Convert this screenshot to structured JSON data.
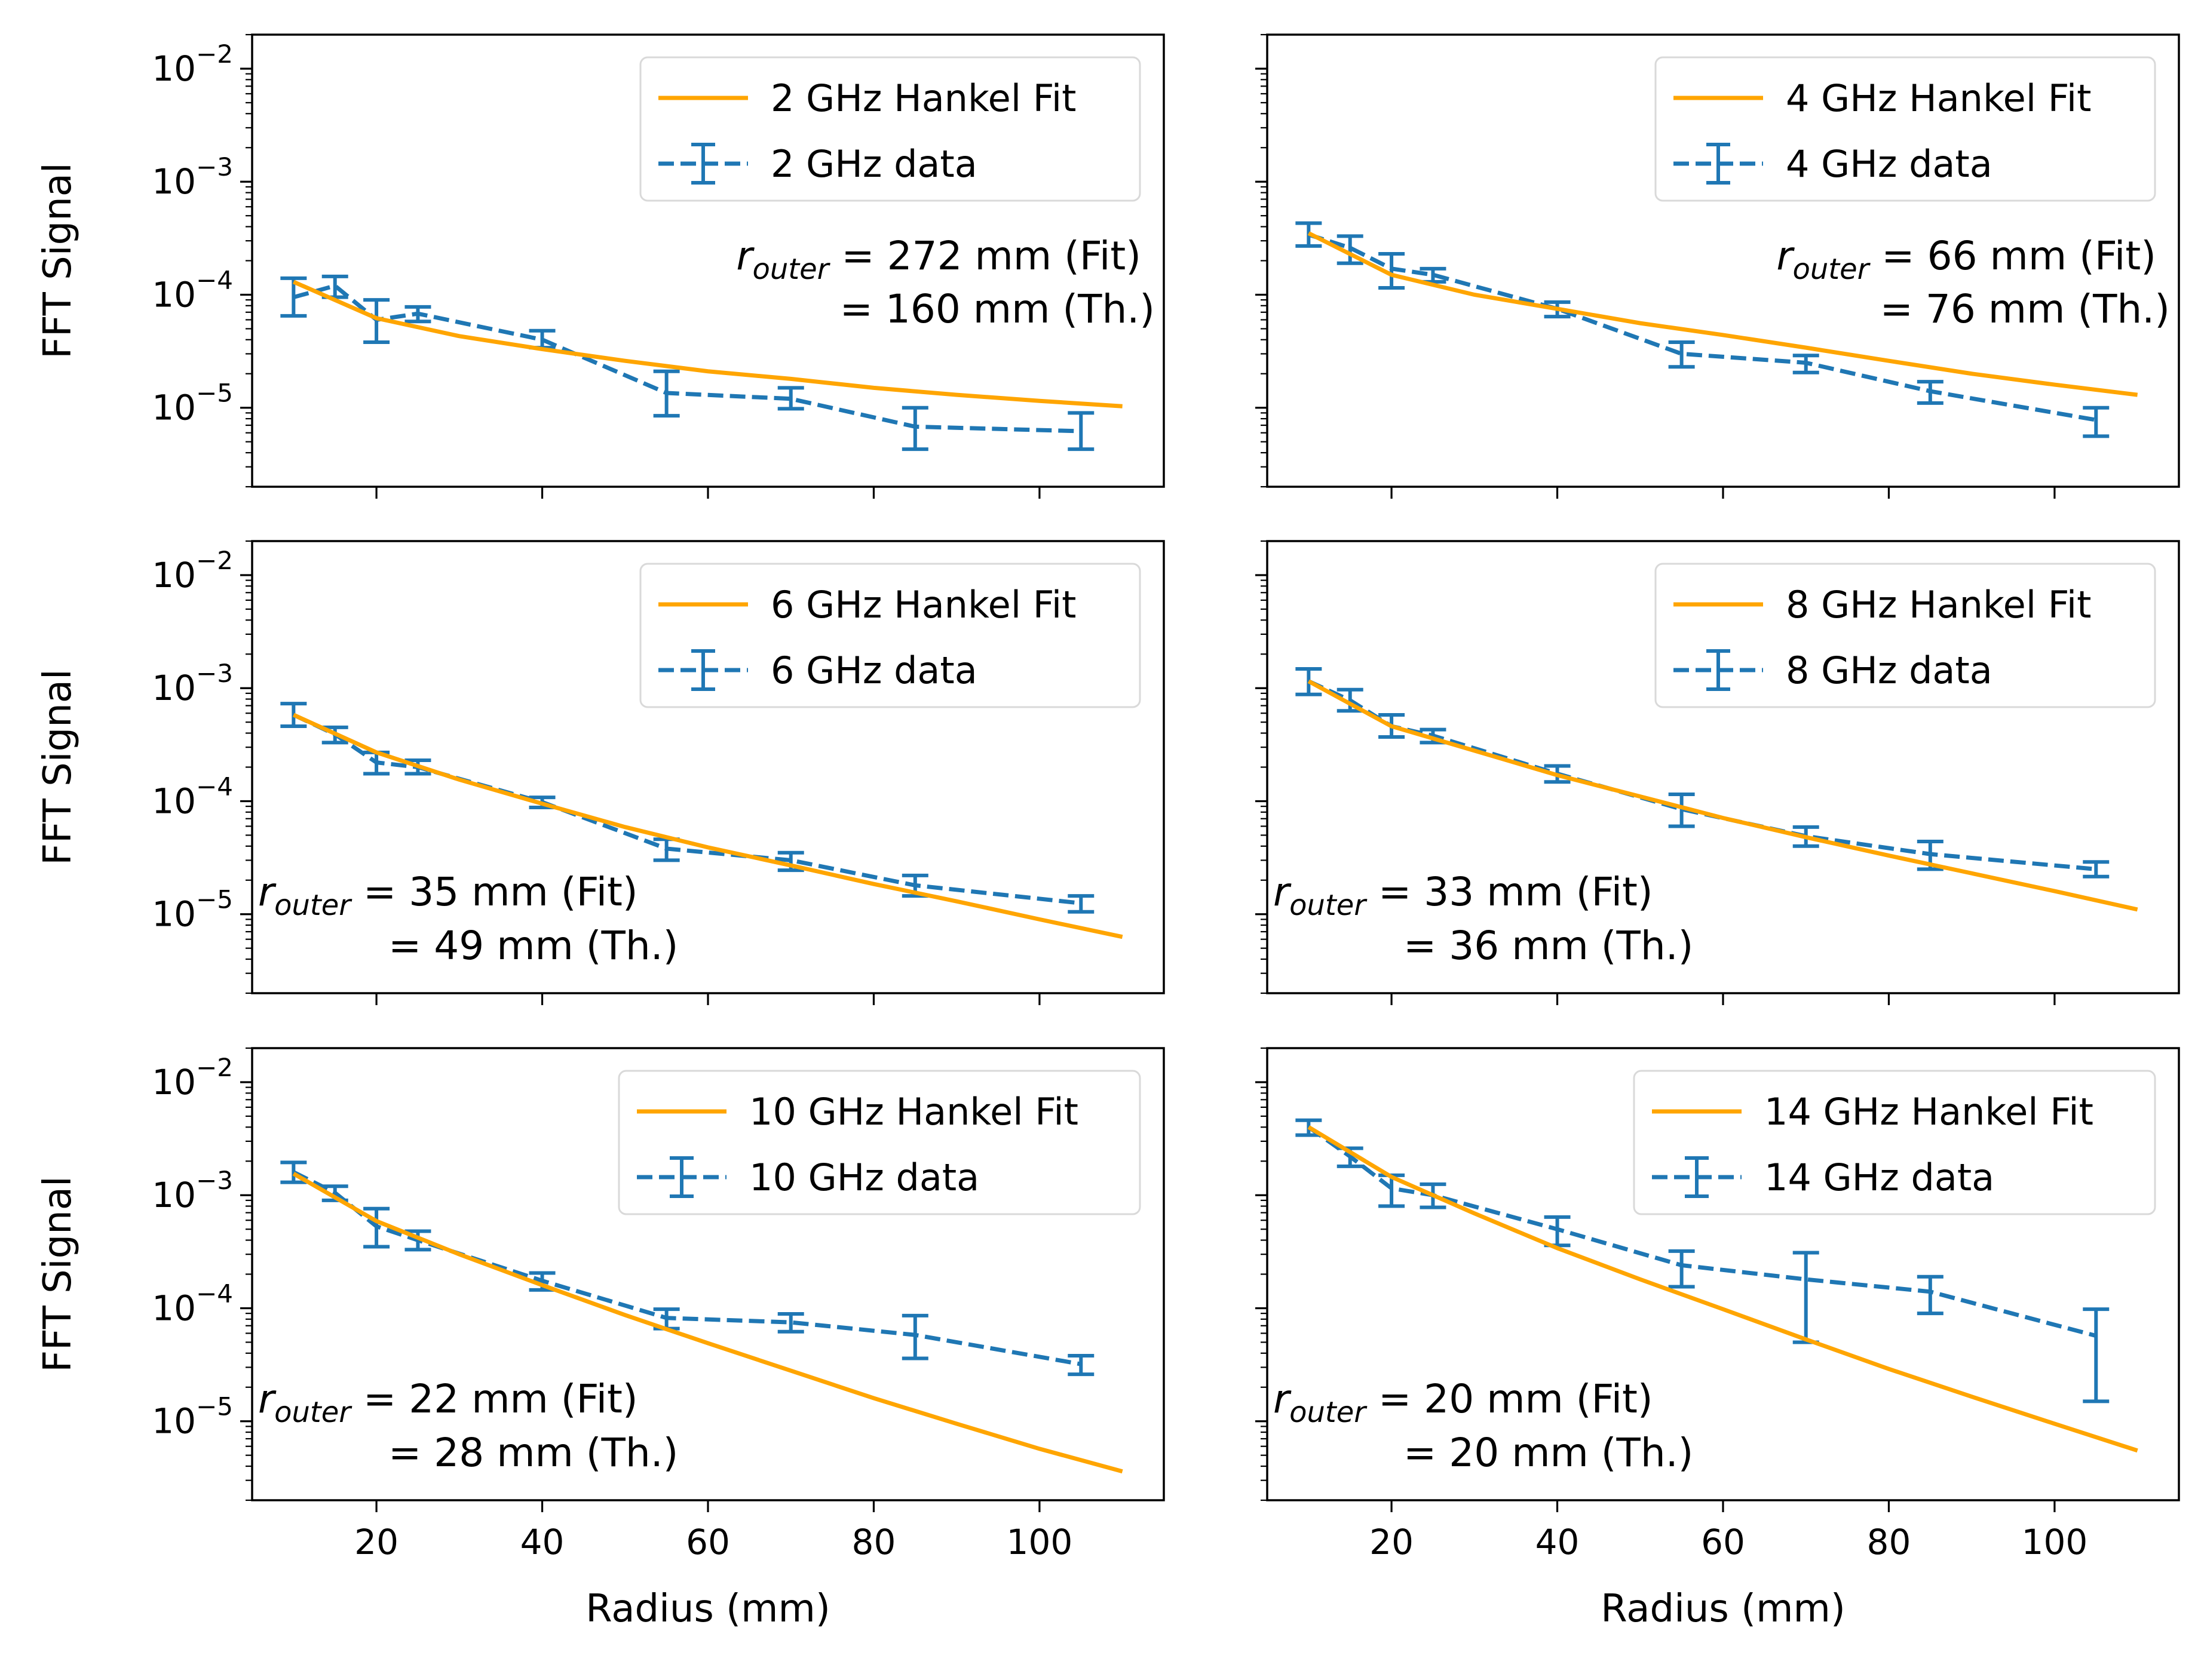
{
  "figure": {
    "ylabel": "FFT Signal",
    "xlabel": "Radius (mm)"
  },
  "chart_data": [
    {
      "type": "line",
      "panel": "top-left",
      "xlim": [
        5,
        115
      ],
      "ylim": [
        2e-06,
        0.02
      ],
      "yscale": "log",
      "xticks": [
        20,
        40,
        60,
        80,
        100
      ],
      "yticks": [
        1e-05,
        0.0001,
        0.001,
        0.01
      ],
      "show_xticklabels": false,
      "show_yticklabels": true,
      "ylabel": "FFT Signal",
      "xlabel": "",
      "legend_position": "upper-right",
      "annotation_position": "right",
      "annotation": {
        "symbol": "r",
        "subscript": "outer",
        "line1": " = 272 mm (Fit)",
        "line2": "= 160 mm (Th.)"
      },
      "series": [
        {
          "name": "2 GHz Hankel Fit",
          "style": "solid",
          "color": "#ffa500",
          "x": [
            10,
            20,
            30,
            40,
            50,
            60,
            70,
            80,
            90,
            100,
            110
          ],
          "y": [
            0.00013,
            6.2e-05,
            4.3e-05,
            3.3e-05,
            2.6e-05,
            2.1e-05,
            1.8e-05,
            1.5e-05,
            1.3e-05,
            1.15e-05,
            1.03e-05
          ]
        },
        {
          "name": "2 GHz data",
          "style": "dashed-errorbar",
          "color": "#1f77b4",
          "x": [
            10,
            15,
            20,
            25,
            40,
            55,
            70,
            85,
            105
          ],
          "y": [
            9.5e-05,
            0.00012,
            6e-05,
            6.8e-05,
            4e-05,
            1.35e-05,
            1.2e-05,
            6.8e-06,
            6.2e-06
          ],
          "ylow": [
            6.5e-05,
            9.5e-05,
            3.8e-05,
            5.8e-05,
            3.4e-05,
            8.5e-06,
            9.8e-06,
            4.3e-06,
            4.3e-06
          ],
          "yhigh": [
            0.00014,
            0.000145,
            9e-05,
            7.8e-05,
            4.8e-05,
            2.1e-05,
            1.5e-05,
            1e-05,
            9e-06
          ]
        }
      ]
    },
    {
      "type": "line",
      "panel": "top-right",
      "xlim": [
        5,
        115
      ],
      "ylim": [
        2e-06,
        0.02
      ],
      "yscale": "log",
      "xticks": [
        20,
        40,
        60,
        80,
        100
      ],
      "yticks": [
        1e-05,
        0.0001,
        0.001,
        0.01
      ],
      "show_xticklabels": false,
      "show_yticklabels": false,
      "ylabel": "",
      "xlabel": "",
      "legend_position": "upper-right",
      "annotation_position": "right",
      "annotation": {
        "symbol": "r",
        "subscript": "outer",
        "line1": " = 66 mm (Fit)",
        "line2": "= 76 mm (Th.)"
      },
      "series": [
        {
          "name": "4 GHz Hankel Fit",
          "style": "solid",
          "color": "#ffa500",
          "x": [
            10,
            20,
            30,
            40,
            50,
            60,
            70,
            80,
            90,
            100,
            110
          ],
          "y": [
            0.00035,
            0.00015,
            0.0001,
            7.5e-05,
            5.6e-05,
            4.4e-05,
            3.4e-05,
            2.6e-05,
            2e-05,
            1.6e-05,
            1.3e-05
          ]
        },
        {
          "name": "4 GHz data",
          "style": "dashed-errorbar",
          "color": "#1f77b4",
          "x": [
            10,
            15,
            20,
            25,
            40,
            55,
            70,
            85,
            105
          ],
          "y": [
            0.00034,
            0.00026,
            0.00017,
            0.00015,
            7.5e-05,
            3e-05,
            2.5e-05,
            1.4e-05,
            7.8e-06
          ],
          "ylow": [
            0.00027,
            0.00019,
            0.000115,
            0.00013,
            6.4e-05,
            2.3e-05,
            2.05e-05,
            1.1e-05,
            5.6e-06
          ],
          "yhigh": [
            0.00043,
            0.00033,
            0.00023,
            0.00017,
            8.6e-05,
            3.8e-05,
            2.9e-05,
            1.7e-05,
            1e-05
          ]
        }
      ]
    },
    {
      "type": "line",
      "panel": "middle-left",
      "xlim": [
        5,
        115
      ],
      "ylim": [
        2e-06,
        0.02
      ],
      "yscale": "log",
      "xticks": [
        20,
        40,
        60,
        80,
        100
      ],
      "yticks": [
        1e-05,
        0.0001,
        0.001,
        0.01
      ],
      "show_xticklabels": false,
      "show_yticklabels": true,
      "ylabel": "FFT Signal",
      "xlabel": "",
      "legend_position": "upper-right",
      "annotation_position": "left",
      "annotation": {
        "symbol": "r",
        "subscript": "outer",
        "line1": " = 35 mm (Fit)",
        "line2": "= 49 mm (Th.)"
      },
      "series": [
        {
          "name": "6 GHz Hankel Fit",
          "style": "solid",
          "color": "#ffa500",
          "x": [
            10,
            20,
            30,
            40,
            50,
            60,
            70,
            80,
            90,
            100,
            110
          ],
          "y": [
            0.00058,
            0.00027,
            0.000155,
            9.5e-05,
            5.9e-05,
            3.9e-05,
            2.7e-05,
            1.85e-05,
            1.3e-05,
            9e-06,
            6.3e-06
          ]
        },
        {
          "name": "6 GHz data",
          "style": "dashed-errorbar",
          "color": "#1f77b4",
          "x": [
            10,
            15,
            20,
            25,
            40,
            55,
            70,
            85,
            105
          ],
          "y": [
            0.00058,
            0.00039,
            0.00022,
            0.0002,
            9.8e-05,
            3.8e-05,
            3e-05,
            1.8e-05,
            1.25e-05
          ],
          "ylow": [
            0.00046,
            0.00033,
            0.000175,
            0.000175,
            8.8e-05,
            3e-05,
            2.45e-05,
            1.45e-05,
            1.05e-05
          ],
          "yhigh": [
            0.00073,
            0.00045,
            0.00027,
            0.00023,
            0.000108,
            4.6e-05,
            3.5e-05,
            2.2e-05,
            1.45e-05
          ]
        }
      ]
    },
    {
      "type": "line",
      "panel": "middle-right",
      "xlim": [
        5,
        115
      ],
      "ylim": [
        2e-06,
        0.02
      ],
      "yscale": "log",
      "xticks": [
        20,
        40,
        60,
        80,
        100
      ],
      "yticks": [
        1e-05,
        0.0001,
        0.001,
        0.01
      ],
      "show_xticklabels": false,
      "show_yticklabels": false,
      "ylabel": "",
      "xlabel": "",
      "legend_position": "upper-right",
      "annotation_position": "left",
      "annotation": {
        "symbol": "r",
        "subscript": "outer",
        "line1": " = 33 mm (Fit)",
        "line2": "= 36 mm (Th.)"
      },
      "series": [
        {
          "name": "8 GHz Hankel Fit",
          "style": "solid",
          "color": "#ffa500",
          "x": [
            10,
            20,
            30,
            40,
            50,
            60,
            70,
            80,
            90,
            100,
            110
          ],
          "y": [
            0.00115,
            0.00046,
            0.00028,
            0.00017,
            0.00011,
            7.1e-05,
            4.8e-05,
            3.3e-05,
            2.3e-05,
            1.6e-05,
            1.1e-05
          ]
        },
        {
          "name": "8 GHz data",
          "style": "dashed-errorbar",
          "color": "#1f77b4",
          "x": [
            10,
            15,
            20,
            25,
            40,
            55,
            70,
            85,
            105
          ],
          "y": [
            0.00115,
            0.00078,
            0.00046,
            0.00038,
            0.000175,
            8.5e-05,
            4.9e-05,
            3.4e-05,
            2.5e-05
          ],
          "ylow": [
            0.00088,
            0.00063,
            0.00037,
            0.00033,
            0.000148,
            6e-05,
            4e-05,
            2.5e-05,
            2.15e-05
          ],
          "yhigh": [
            0.00148,
            0.00097,
            0.00058,
            0.00043,
            0.000205,
            0.000115,
            5.9e-05,
            4.4e-05,
            2.9e-05
          ]
        }
      ]
    },
    {
      "type": "line",
      "panel": "bottom-left",
      "xlim": [
        5,
        115
      ],
      "ylim": [
        2e-06,
        0.02
      ],
      "yscale": "log",
      "xticks": [
        20,
        40,
        60,
        80,
        100
      ],
      "yticks": [
        1e-05,
        0.0001,
        0.001,
        0.01
      ],
      "show_xticklabels": true,
      "show_yticklabels": true,
      "ylabel": "FFT Signal",
      "xlabel": "Radius (mm)",
      "legend_position": "upper-right",
      "annotation_position": "left",
      "annotation": {
        "symbol": "r",
        "subscript": "outer",
        "line1": " = 22 mm (Fit)",
        "line2": "= 28 mm (Th.)"
      },
      "series": [
        {
          "name": "10 GHz Hankel Fit",
          "style": "solid",
          "color": "#ffa500",
          "x": [
            10,
            20,
            30,
            40,
            50,
            60,
            70,
            80,
            90,
            100,
            110
          ],
          "y": [
            0.00155,
            0.00059,
            0.0003,
            0.00016,
            8.7e-05,
            4.9e-05,
            2.8e-05,
            1.6e-05,
            9.5e-06,
            5.7e-06,
            3.6e-06
          ]
        },
        {
          "name": "10 GHz data",
          "style": "dashed-errorbar",
          "color": "#1f77b4",
          "x": [
            10,
            15,
            20,
            25,
            40,
            55,
            70,
            85,
            105
          ],
          "y": [
            0.0016,
            0.00105,
            0.00053,
            0.0004,
            0.000175,
            8.2e-05,
            7.5e-05,
            5.8e-05,
            3.2e-05
          ],
          "ylow": [
            0.0013,
            0.0009,
            0.00035,
            0.00033,
            0.000145,
            6.6e-05,
            6.2e-05,
            3.6e-05,
            2.6e-05
          ],
          "yhigh": [
            0.00195,
            0.0012,
            0.00076,
            0.00048,
            0.000205,
            9.8e-05,
            8.9e-05,
            8.6e-05,
            3.8e-05
          ]
        }
      ]
    },
    {
      "type": "line",
      "panel": "bottom-right",
      "xlim": [
        5,
        115
      ],
      "ylim": [
        2e-06,
        0.02
      ],
      "yscale": "log",
      "xticks": [
        20,
        40,
        60,
        80,
        100
      ],
      "yticks": [
        1e-05,
        0.0001,
        0.001,
        0.01
      ],
      "show_xticklabels": true,
      "show_yticklabels": false,
      "ylabel": "",
      "xlabel": "Radius (mm)",
      "legend_position": "upper-right",
      "annotation_position": "left",
      "annotation": {
        "symbol": "r",
        "subscript": "outer",
        "line1": " = 20 mm (Fit)",
        "line2": "= 20 mm (Th.)"
      },
      "series": [
        {
          "name": "14 GHz Hankel Fit",
          "style": "solid",
          "color": "#ffa500",
          "x": [
            10,
            20,
            30,
            40,
            50,
            60,
            70,
            80,
            90,
            100,
            110
          ],
          "y": [
            0.004,
            0.00145,
            0.00069,
            0.00034,
            0.00018,
            9.8e-05,
            5.3e-05,
            2.9e-05,
            1.65e-05,
            9.5e-06,
            5.5e-06
          ]
        },
        {
          "name": "14 GHz data",
          "style": "dashed-errorbar",
          "color": "#1f77b4",
          "x": [
            10,
            15,
            20,
            25,
            40,
            55,
            70,
            85,
            105
          ],
          "y": [
            0.004,
            0.0022,
            0.00115,
            0.001,
            0.0005,
            0.00024,
            0.00018,
            0.00014,
            5.7e-05
          ],
          "ylow": [
            0.0034,
            0.0018,
            0.0008,
            0.00078,
            0.00036,
            0.000155,
            5e-05,
            9e-05,
            1.5e-05
          ],
          "yhigh": [
            0.0046,
            0.0026,
            0.0015,
            0.00125,
            0.00064,
            0.00032,
            0.00031,
            0.00019,
            9.8e-05
          ]
        }
      ]
    }
  ]
}
